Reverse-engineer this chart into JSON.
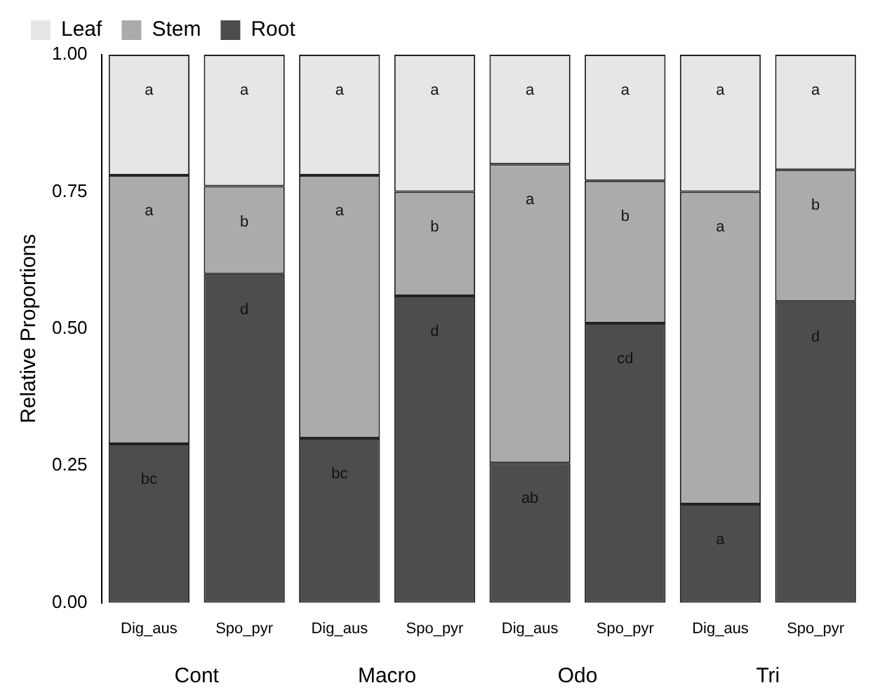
{
  "chart_data": {
    "type": "bar",
    "stacked": true,
    "ylabel": "Relative Proportions",
    "categories": [
      "Dig_aus",
      "Spo_pyr",
      "Dig_aus",
      "Spo_pyr",
      "Dig_aus",
      "Spo_pyr",
      "Dig_aus",
      "Spo_pyr"
    ],
    "annotations": [
      "Cont",
      "Macro",
      "Odo",
      "Tri"
    ],
    "series": [
      {
        "name": "Root",
        "color": "#4d4d4d",
        "values": [
          0.29,
          0.6,
          0.3,
          0.56,
          0.255,
          0.51,
          0.18,
          0.55
        ],
        "value_labels": [
          "bc",
          "d",
          "bc",
          "d",
          "ab",
          "cd",
          "a",
          "d"
        ]
      },
      {
        "name": "Stem",
        "color": "#ababab",
        "values": [
          0.49,
          0.16,
          0.48,
          0.19,
          0.545,
          0.26,
          0.57,
          0.24
        ],
        "value_labels": [
          "a",
          "b",
          "a",
          "b",
          "a",
          "b",
          "a",
          "b"
        ]
      },
      {
        "name": "Leaf",
        "color": "#e6e6e6",
        "values": [
          0.22,
          0.24,
          0.22,
          0.25,
          0.2,
          0.23,
          0.25,
          0.21
        ],
        "value_labels": [
          "a",
          "a",
          "a",
          "a",
          "a",
          "a",
          "a",
          "a"
        ]
      }
    ],
    "ylim": [
      0,
      1
    ],
    "yticks": [
      {
        "value": 0,
        "label": "0.00"
      },
      {
        "value": 0.25,
        "label": "0.25"
      },
      {
        "value": 0.5,
        "label": "0.50"
      },
      {
        "value": 0.75,
        "label": "0.75"
      },
      {
        "value": 1,
        "label": "1.00"
      }
    ],
    "grid": false,
    "legend": "top left"
  }
}
